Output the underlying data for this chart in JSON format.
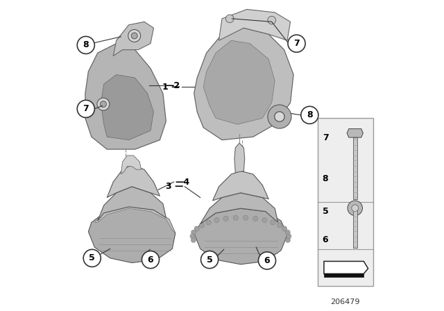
{
  "image_number": "206479",
  "colors": {
    "background_color": "#ffffff",
    "part_fill": "#c8c8c8",
    "part_edge": "#888888",
    "circle_edge": "#333333",
    "circle_fill": "#ffffff",
    "text": "#000000",
    "line": "#333333",
    "legend_border": "#aaaaaa",
    "legend_bg": "#f5f5f5"
  }
}
